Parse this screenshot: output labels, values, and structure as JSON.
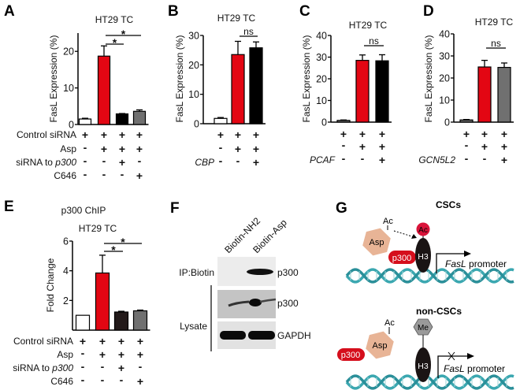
{
  "colors": {
    "white": "#ffffff",
    "red": "#e30613",
    "black": "#000000",
    "dark": "#231a1a",
    "gray": "#707070",
    "dna": "#3aa7b0",
    "asp": "#e8b496",
    "me": "#9a9a9a"
  },
  "chart_data": [
    {
      "id": "A",
      "panel_label": "A",
      "type": "bar",
      "title": "HT29 TC",
      "ylabel": "FasL Expression (%)",
      "ylim": [
        0,
        25
      ],
      "yticks": [
        0,
        10,
        20
      ],
      "bars": [
        {
          "value": 1.5,
          "error": 0.2,
          "color": "white"
        },
        {
          "value": 18.7,
          "error": 2.8,
          "color": "red"
        },
        {
          "value": 2.9,
          "error": 0.1,
          "color": "black"
        },
        {
          "value": 3.6,
          "error": 0.4,
          "color": "gray"
        }
      ],
      "significance": [
        {
          "from": 1,
          "to": 2,
          "label": "*"
        },
        {
          "from": 1,
          "to": 3,
          "label": "*"
        }
      ],
      "conditions": [
        {
          "label": "Control siRNA",
          "signs": [
            "+",
            "+",
            "+",
            "+"
          ]
        },
        {
          "label": "Asp",
          "signs": [
            "-",
            "+",
            "+",
            "+"
          ]
        },
        {
          "label": "siRNA to ",
          "italic": "p300",
          "signs": [
            "-",
            "-",
            "+",
            "-"
          ]
        },
        {
          "label": "C646",
          "signs": [
            "-",
            "-",
            "-",
            "+"
          ]
        }
      ]
    },
    {
      "id": "B",
      "panel_label": "B",
      "type": "bar",
      "title": "HT29 TC",
      "ylabel": "FasL Expression (%)",
      "ylim": [
        0,
        30
      ],
      "yticks": [
        0,
        10,
        20,
        30
      ],
      "bars": [
        {
          "value": 1.8,
          "error": 0.3,
          "color": "white"
        },
        {
          "value": 23.5,
          "error": 4.5,
          "color": "red"
        },
        {
          "value": 25.8,
          "error": 2.0,
          "color": "black"
        }
      ],
      "significance": [
        {
          "from": 1,
          "to": 2,
          "label": "ns"
        }
      ],
      "conditions": [
        {
          "label": "",
          "signs": [
            "+",
            "+",
            "+"
          ]
        },
        {
          "label": "",
          "signs": [
            "-",
            "+",
            "+"
          ]
        },
        {
          "label": "",
          "italic": "CBP",
          "signs": [
            "-",
            "-",
            "+"
          ]
        }
      ]
    },
    {
      "id": "C",
      "panel_label": "C",
      "type": "bar",
      "title": "HT29 TC",
      "ylabel": "FasL Expression (%)",
      "ylim": [
        0,
        40
      ],
      "yticks": [
        0,
        10,
        20,
        30,
        40
      ],
      "bars": [
        {
          "value": 0.8,
          "error": 0.2,
          "color": "gray"
        },
        {
          "value": 28.5,
          "error": 2.5,
          "color": "red"
        },
        {
          "value": 28.3,
          "error": 2.8,
          "color": "black"
        }
      ],
      "significance": [
        {
          "from": 1,
          "to": 2,
          "label": "ns"
        }
      ],
      "conditions": [
        {
          "label": "",
          "signs": [
            "+",
            "+",
            "+"
          ]
        },
        {
          "label": "",
          "signs": [
            "-",
            "+",
            "+"
          ]
        },
        {
          "label": "",
          "italic": "PCAF",
          "signs": [
            "-",
            "-",
            "+"
          ]
        }
      ]
    },
    {
      "id": "D",
      "panel_label": "D",
      "type": "bar",
      "title": "HT29 TC",
      "ylabel": "FasL Expression (%)",
      "ylim": [
        0,
        40
      ],
      "yticks": [
        0,
        10,
        20,
        30,
        40
      ],
      "bars": [
        {
          "value": 1.0,
          "error": 0.2,
          "color": "gray"
        },
        {
          "value": 25.0,
          "error": 3.0,
          "color": "red"
        },
        {
          "value": 24.8,
          "error": 2.0,
          "color": "gray"
        }
      ],
      "significance": [
        {
          "from": 1,
          "to": 2,
          "label": "ns"
        }
      ],
      "conditions": [
        {
          "label": "",
          "signs": [
            "+",
            "+",
            "+"
          ]
        },
        {
          "label": "",
          "signs": [
            "-",
            "+",
            "+"
          ]
        },
        {
          "label": "",
          "italic": "GCN5L2",
          "signs": [
            "-",
            "-",
            "+"
          ]
        }
      ]
    },
    {
      "id": "E",
      "panel_label": "E",
      "type": "bar",
      "title": "HT29 TC",
      "subtitle": "p300 ChIP",
      "ylabel": "Fold Change",
      "ylim": [
        0,
        6
      ],
      "yticks": [
        2,
        4,
        6
      ],
      "bars": [
        {
          "value": 1.0,
          "error": 0.0,
          "color": "white"
        },
        {
          "value": 3.85,
          "error": 1.2,
          "color": "red"
        },
        {
          "value": 1.22,
          "error": 0.05,
          "color": "dark"
        },
        {
          "value": 1.3,
          "error": 0.05,
          "color": "gray"
        }
      ],
      "significance": [
        {
          "from": 1,
          "to": 2,
          "label": "*"
        },
        {
          "from": 1,
          "to": 3,
          "label": "*"
        }
      ],
      "conditions": [
        {
          "label": "Control siRNA",
          "signs": [
            "+",
            "+",
            "+",
            "+"
          ]
        },
        {
          "label": "Asp",
          "signs": [
            "-",
            "+",
            "+",
            "+"
          ]
        },
        {
          "label": "siRNA to ",
          "italic": "p300",
          "signs": [
            "-",
            "-",
            "+",
            "-"
          ]
        },
        {
          "label": "C646",
          "signs": [
            "-",
            "-",
            "-",
            "+"
          ]
        }
      ]
    }
  ],
  "panel_f": {
    "panel_label": "F",
    "lanes": [
      "Biotin-NH2",
      "Biotin-Asp"
    ],
    "ip_label": "IP:Biotin",
    "lysate_label": "Lysate",
    "bands": [
      "p300",
      "p300",
      "GAPDH"
    ]
  },
  "panel_g": {
    "panel_label": "G",
    "top": {
      "title": "CSCs",
      "asp": "Asp",
      "ac": "Ac",
      "ac_mark": "Ac",
      "p300": "p300",
      "h3": "H3",
      "gene": "FasL",
      "promoter": " promoter"
    },
    "bottom": {
      "title": "non-CSCs",
      "asp": "Asp",
      "ac": "Ac",
      "me": "Me",
      "p300": "p300",
      "h3": "H3",
      "gene": "FasL",
      "promoter": " promoter"
    }
  }
}
